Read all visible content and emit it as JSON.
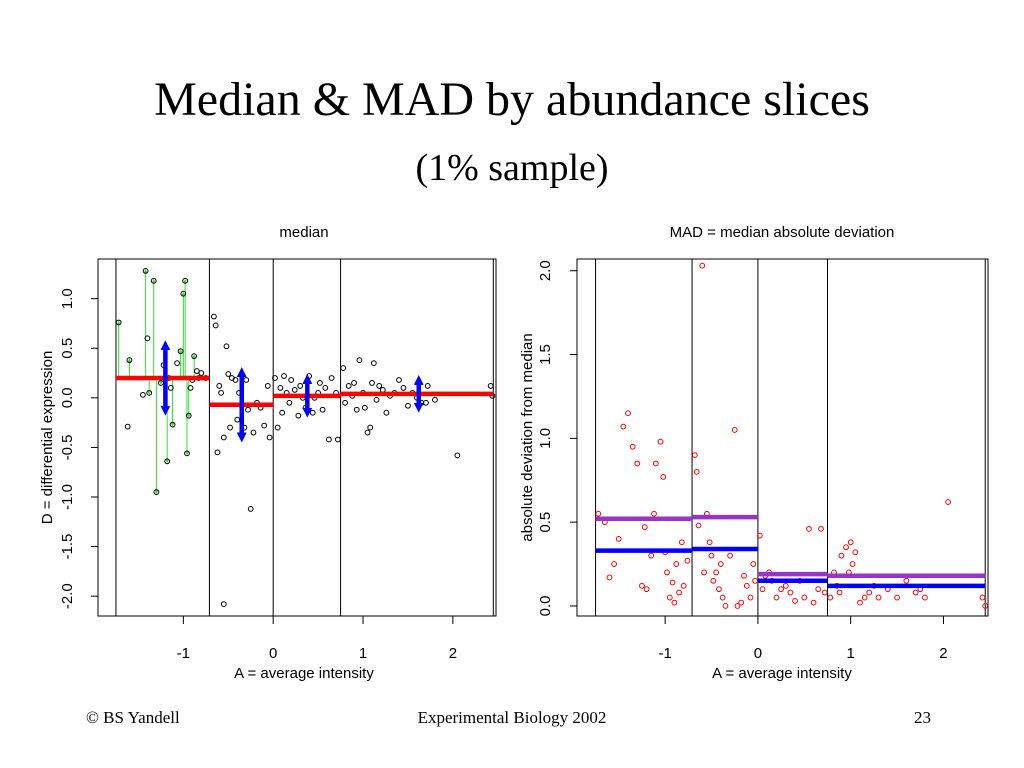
{
  "slide": {
    "title": "Median & MAD by abundance slices",
    "subtitle": "(1% sample)",
    "footer_left": "© BS Yandell",
    "footer_center": "Experimental Biology 2002",
    "page_number": "23"
  },
  "chart_data": [
    {
      "type": "scatter",
      "title": "median",
      "xlabel": "A = average intensity",
      "ylabel": "D = differential expression",
      "xlim": [
        -1.95,
        2.48
      ],
      "ylim": [
        -2.2,
        1.4
      ],
      "xticks": [
        "-1",
        "0",
        "1",
        "2"
      ],
      "yticks": [
        "-2.0",
        "-1.5",
        "-1.0",
        "-0.5",
        "0.0",
        "0.5",
        "1.0"
      ],
      "slice_boundaries": [
        -1.75,
        -0.71,
        0.0,
        0.75,
        2.45
      ],
      "point_color": "#000000",
      "points": [
        [
          -1.72,
          0.76
        ],
        [
          -1.6,
          0.38
        ],
        [
          -1.62,
          -0.29
        ],
        [
          -1.45,
          0.03
        ],
        [
          -1.42,
          1.28
        ],
        [
          -1.4,
          0.6
        ],
        [
          -1.38,
          0.05
        ],
        [
          -1.33,
          1.18
        ],
        [
          -1.3,
          -0.95
        ],
        [
          -1.25,
          0.15
        ],
        [
          -1.22,
          0.33
        ],
        [
          -1.18,
          -0.64
        ],
        [
          -1.16,
          0.2
        ],
        [
          -1.14,
          0.1
        ],
        [
          -1.12,
          -0.27
        ],
        [
          -1.07,
          0.35
        ],
        [
          -1.03,
          0.47
        ],
        [
          -1.0,
          1.05
        ],
        [
          -0.98,
          1.18
        ],
        [
          -0.96,
          -0.56
        ],
        [
          -0.94,
          -0.18
        ],
        [
          -0.92,
          0.1
        ],
        [
          -0.9,
          0.18
        ],
        [
          -0.88,
          0.42
        ],
        [
          -0.85,
          0.27
        ],
        [
          -0.83,
          0.2
        ],
        [
          -0.8,
          0.25
        ],
        [
          -0.75,
          0.2
        ],
        [
          -0.66,
          0.82
        ],
        [
          -0.64,
          0.73
        ],
        [
          -0.62,
          -0.55
        ],
        [
          -0.6,
          0.12
        ],
        [
          -0.58,
          0.05
        ],
        [
          -0.55,
          -0.4
        ],
        [
          -0.52,
          0.52
        ],
        [
          -0.5,
          0.24
        ],
        [
          -0.48,
          -0.3
        ],
        [
          -0.46,
          0.2
        ],
        [
          -0.42,
          0.18
        ],
        [
          -0.4,
          -0.22
        ],
        [
          -0.38,
          0.05
        ],
        [
          -0.35,
          -0.08
        ],
        [
          -0.32,
          -0.3
        ],
        [
          -0.3,
          0.18
        ],
        [
          -0.28,
          -0.12
        ],
        [
          -0.25,
          -1.12
        ],
        [
          -0.22,
          -0.35
        ],
        [
          -0.18,
          -0.05
        ],
        [
          -0.14,
          -0.1
        ],
        [
          -0.1,
          -0.28
        ],
        [
          -0.06,
          0.12
        ],
        [
          -0.04,
          -0.4
        ],
        [
          -0.55,
          -2.08
        ],
        [
          0.02,
          0.2
        ],
        [
          0.05,
          -0.3
        ],
        [
          0.08,
          0.1
        ],
        [
          0.1,
          -0.15
        ],
        [
          0.12,
          0.22
        ],
        [
          0.15,
          0.05
        ],
        [
          0.18,
          -0.05
        ],
        [
          0.2,
          0.18
        ],
        [
          0.24,
          0.08
        ],
        [
          0.28,
          -0.18
        ],
        [
          0.3,
          0.12
        ],
        [
          0.33,
          0.0
        ],
        [
          0.36,
          -0.1
        ],
        [
          0.4,
          0.22
        ],
        [
          0.44,
          -0.15
        ],
        [
          0.46,
          0.0
        ],
        [
          0.5,
          0.05
        ],
        [
          0.52,
          0.15
        ],
        [
          0.55,
          -0.12
        ],
        [
          0.58,
          0.1
        ],
        [
          0.62,
          -0.42
        ],
        [
          0.65,
          0.2
        ],
        [
          0.7,
          0.05
        ],
        [
          0.72,
          -0.42
        ],
        [
          0.78,
          0.3
        ],
        [
          0.8,
          -0.05
        ],
        [
          0.84,
          0.12
        ],
        [
          0.88,
          0.02
        ],
        [
          0.9,
          0.15
        ],
        [
          0.93,
          -0.12
        ],
        [
          0.96,
          0.38
        ],
        [
          1.0,
          0.05
        ],
        [
          1.02,
          -0.1
        ],
        [
          1.05,
          -0.35
        ],
        [
          1.08,
          -0.3
        ],
        [
          1.1,
          0.15
        ],
        [
          1.12,
          0.35
        ],
        [
          1.15,
          -0.02
        ],
        [
          1.18,
          0.12
        ],
        [
          1.22,
          0.08
        ],
        [
          1.26,
          -0.15
        ],
        [
          1.3,
          0.02
        ],
        [
          1.35,
          0.05
        ],
        [
          1.4,
          0.18
        ],
        [
          1.45,
          0.1
        ],
        [
          1.5,
          -0.08
        ],
        [
          1.55,
          0.05
        ],
        [
          1.6,
          0.0
        ],
        [
          1.65,
          -0.05
        ],
        [
          1.7,
          -0.05
        ],
        [
          1.72,
          0.12
        ],
        [
          1.8,
          -0.02
        ],
        [
          2.05,
          -0.58
        ],
        [
          2.42,
          0.12
        ],
        [
          2.44,
          0.02
        ]
      ],
      "medians": [
        {
          "x": [
            -1.75,
            -0.71
          ],
          "y": 0.2
        },
        {
          "x": [
            -0.71,
            0.0
          ],
          "y": -0.07
        },
        {
          "x": [
            0.0,
            0.75
          ],
          "y": 0.02
        },
        {
          "x": [
            0.75,
            2.45
          ],
          "y": 0.04
        }
      ],
      "median_color": "#ff0000",
      "mad_arrows": [
        {
          "x": -1.2,
          "lo": -0.13,
          "hi": 0.53
        },
        {
          "x": -0.35,
          "lo": -0.4,
          "hi": 0.26
        },
        {
          "x": 0.38,
          "lo": -0.15,
          "hi": 0.19
        },
        {
          "x": 1.62,
          "lo": -0.1,
          "hi": 0.18
        }
      ],
      "mad_arrow_color": "#0000ff",
      "deviation_arrows_x": [
        -1.72,
        -1.6,
        -1.42,
        -1.38,
        -1.33,
        -1.3,
        -1.25,
        -1.18,
        -1.12,
        -1.03,
        -1.0,
        -0.98,
        -0.96,
        -0.94,
        -0.88
      ],
      "deviation_arrow_color": "#33dd33"
    },
    {
      "type": "scatter",
      "title": "MAD = median absolute deviation",
      "xlabel": "A = average intensity",
      "ylabel": "absolute deviation from median",
      "xlim": [
        -1.95,
        2.48
      ],
      "ylim": [
        -0.06,
        2.07
      ],
      "xticks": [
        "-1",
        "0",
        "1",
        "2"
      ],
      "yticks": [
        "0.0",
        "0.5",
        "1.0",
        "1.5",
        "2.0"
      ],
      "slice_boundaries": [
        -1.75,
        -0.71,
        0.0,
        0.75,
        2.45
      ],
      "point_color": "#ff0000",
      "points": [
        [
          -1.72,
          0.55
        ],
        [
          -1.65,
          0.5
        ],
        [
          -1.6,
          0.17
        ],
        [
          -1.55,
          0.25
        ],
        [
          -1.5,
          0.4
        ],
        [
          -1.45,
          1.07
        ],
        [
          -1.4,
          1.15
        ],
        [
          -1.35,
          0.95
        ],
        [
          -1.3,
          0.85
        ],
        [
          -1.25,
          0.12
        ],
        [
          -1.22,
          0.47
        ],
        [
          -1.2,
          0.1
        ],
        [
          -1.15,
          0.3
        ],
        [
          -1.12,
          0.55
        ],
        [
          -1.1,
          0.85
        ],
        [
          -1.05,
          0.98
        ],
        [
          -1.02,
          0.77
        ],
        [
          -1.0,
          0.32
        ],
        [
          -0.98,
          0.2
        ],
        [
          -0.95,
          0.05
        ],
        [
          -0.92,
          0.14
        ],
        [
          -0.9,
          0.02
        ],
        [
          -0.88,
          0.25
        ],
        [
          -0.85,
          0.08
        ],
        [
          -0.82,
          0.38
        ],
        [
          -0.8,
          0.12
        ],
        [
          -0.76,
          0.27
        ],
        [
          -0.68,
          0.9
        ],
        [
          -0.66,
          0.8
        ],
        [
          -0.64,
          0.48
        ],
        [
          -0.6,
          2.03
        ],
        [
          -0.58,
          0.2
        ],
        [
          -0.55,
          0.55
        ],
        [
          -0.52,
          0.38
        ],
        [
          -0.5,
          0.3
        ],
        [
          -0.48,
          0.15
        ],
        [
          -0.45,
          0.2
        ],
        [
          -0.42,
          0.1
        ],
        [
          -0.4,
          0.25
        ],
        [
          -0.38,
          0.05
        ],
        [
          -0.35,
          0.0
        ],
        [
          -0.3,
          0.3
        ],
        [
          -0.25,
          1.05
        ],
        [
          -0.22,
          0.0
        ],
        [
          -0.18,
          0.02
        ],
        [
          -0.15,
          0.18
        ],
        [
          -0.12,
          0.12
        ],
        [
          -0.08,
          0.05
        ],
        [
          -0.05,
          0.25
        ],
        [
          -0.03,
          0.15
        ],
        [
          0.02,
          0.42
        ],
        [
          0.05,
          0.1
        ],
        [
          0.08,
          0.18
        ],
        [
          0.12,
          0.2
        ],
        [
          0.15,
          0.15
        ],
        [
          0.2,
          0.05
        ],
        [
          0.25,
          0.1
        ],
        [
          0.3,
          0.12
        ],
        [
          0.35,
          0.08
        ],
        [
          0.4,
          0.03
        ],
        [
          0.45,
          0.15
        ],
        [
          0.5,
          0.05
        ],
        [
          0.55,
          0.46
        ],
        [
          0.6,
          0.02
        ],
        [
          0.65,
          0.1
        ],
        [
          0.68,
          0.46
        ],
        [
          0.72,
          0.08
        ],
        [
          0.78,
          0.05
        ],
        [
          0.82,
          0.2
        ],
        [
          0.85,
          0.12
        ],
        [
          0.88,
          0.08
        ],
        [
          0.9,
          0.3
        ],
        [
          0.95,
          0.35
        ],
        [
          0.98,
          0.2
        ],
        [
          1.0,
          0.38
        ],
        [
          1.02,
          0.25
        ],
        [
          1.05,
          0.32
        ],
        [
          1.1,
          0.02
        ],
        [
          1.15,
          0.05
        ],
        [
          1.2,
          0.08
        ],
        [
          1.25,
          0.12
        ],
        [
          1.3,
          0.05
        ],
        [
          1.4,
          0.1
        ],
        [
          1.5,
          0.05
        ],
        [
          1.6,
          0.15
        ],
        [
          1.7,
          0.08
        ],
        [
          1.75,
          0.1
        ],
        [
          1.8,
          0.05
        ],
        [
          2.05,
          0.62
        ],
        [
          2.42,
          0.05
        ],
        [
          2.45,
          0.0
        ]
      ],
      "mad_lines": [
        {
          "x": [
            -1.75,
            -0.71
          ],
          "y": 0.52
        },
        {
          "x": [
            -0.71,
            0.0
          ],
          "y": 0.53
        },
        {
          "x": [
            0.0,
            0.75
          ],
          "y": 0.19
        },
        {
          "x": [
            0.75,
            2.45
          ],
          "y": 0.18
        }
      ],
      "mad_line_color": "#9933cc",
      "median_lines": [
        {
          "x": [
            -1.75,
            -0.71
          ],
          "y": 0.33
        },
        {
          "x": [
            -0.71,
            0.0
          ],
          "y": 0.34
        },
        {
          "x": [
            0.0,
            0.75
          ],
          "y": 0.15
        },
        {
          "x": [
            0.75,
            2.45
          ],
          "y": 0.12
        }
      ],
      "median_line_color": "#0000ff"
    }
  ]
}
